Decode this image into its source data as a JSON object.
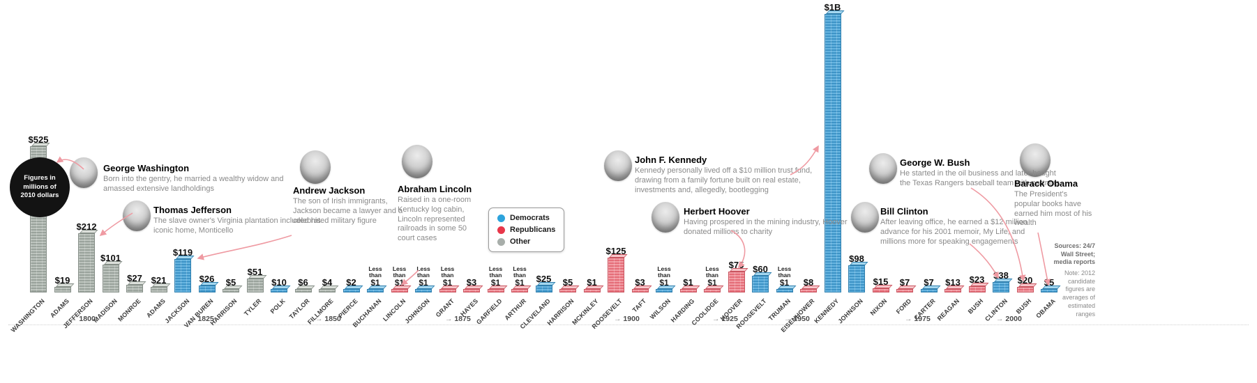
{
  "note_circle": "Figures in millions of 2010 dollars",
  "legend": {
    "items": [
      {
        "label": "Democrats",
        "color": "#2da3dc"
      },
      {
        "label": "Republicans",
        "color": "#e8374a"
      },
      {
        "label": "Other",
        "color": "#a8aeaa"
      }
    ]
  },
  "sources": {
    "line1": "Sources: 24/7 Wall Street; media reports",
    "line2": "Note: 2012 candidate figures are averages of estimated ranges"
  },
  "annotations": {
    "washington": {
      "title": "George Washington",
      "text": "Born into the gentry, he married a wealthy widow and amassed extensive landholdings"
    },
    "jefferson": {
      "title": "Thomas Jefferson",
      "text": "The slave owner's Virginia plantation included his iconic home, Monticello"
    },
    "jackson": {
      "title": "Andrew Jackson",
      "text": "The son of Irish immigrants, Jackson became a lawyer and a celebrated military figure"
    },
    "lincoln": {
      "title": "Abraham Lincoln",
      "text": "Raised in a one-room Kentucky log cabin, Lincoln represented railroads in some 50 court cases"
    },
    "kennedy": {
      "title": "John F. Kennedy",
      "text": "Kennedy personally lived off a $10 million trust fund, drawing from a family fortune built on real estate, investments and, allegedly, bootlegging"
    },
    "hoover": {
      "title": "Herbert Hoover",
      "text": "Having prospered in the mining industry, Hoover donated millions to charity"
    },
    "gwbush": {
      "title": "George W. Bush",
      "text": "He started in the oil business and later bought the Texas Rangers baseball team with partners"
    },
    "clinton": {
      "title": "Bill Clinton",
      "text": "After leaving office, he earned a $12 million advance for his 2001 memoir, My Life, and millions more for speaking engagements"
    },
    "obama": {
      "title": "Barack Obama",
      "text": "The President's popular books have earned him most of his wealth"
    }
  },
  "chart_data": {
    "type": "bar",
    "unit": "millions of 2010 dollars",
    "note": "Figures in millions of 2010 dollars; Kennedy shown as $1B",
    "timeline": [
      "1800",
      "1825",
      "1850",
      "1875",
      "1900",
      "1925",
      "1950",
      "1975",
      "2000"
    ],
    "parties": {
      "D": "Democrats",
      "R": "Republicans",
      "O": "Other"
    },
    "presidents": [
      {
        "name": "WASHINGTON",
        "value": 525,
        "label": "$525",
        "party": "O"
      },
      {
        "name": "ADAMS",
        "value": 19,
        "label": "$19",
        "party": "O"
      },
      {
        "name": "JEFFERSON",
        "value": 212,
        "label": "$212",
        "party": "O"
      },
      {
        "name": "MADISON",
        "value": 101,
        "label": "$101",
        "party": "O"
      },
      {
        "name": "MONROE",
        "value": 27,
        "label": "$27",
        "party": "O"
      },
      {
        "name": "ADAMS",
        "value": 21,
        "label": "$21",
        "party": "O"
      },
      {
        "name": "JACKSON",
        "value": 119,
        "label": "$119",
        "party": "D"
      },
      {
        "name": "VAN BUREN",
        "value": 26,
        "label": "$26",
        "party": "D"
      },
      {
        "name": "HARRISON",
        "value": 5,
        "label": "$5",
        "party": "O"
      },
      {
        "name": "TYLER",
        "value": 51,
        "label": "$51",
        "party": "O"
      },
      {
        "name": "POLK",
        "value": 10,
        "label": "$10",
        "party": "D"
      },
      {
        "name": "TAYLOR",
        "value": 6,
        "label": "$6",
        "party": "O"
      },
      {
        "name": "FILLMORE",
        "value": 4,
        "label": "$4",
        "party": "O"
      },
      {
        "name": "PIERCE",
        "value": 2,
        "label": "$2",
        "party": "D"
      },
      {
        "name": "BUCHANAN",
        "value": 0.5,
        "label": "Less than $1",
        "party": "D"
      },
      {
        "name": "LINCOLN",
        "value": 0.5,
        "label": "Less than $1",
        "party": "R"
      },
      {
        "name": "JOHNSON",
        "value": 0.5,
        "label": "Less than $1",
        "party": "D"
      },
      {
        "name": "GRANT",
        "value": 0.5,
        "label": "Less than $1",
        "party": "R"
      },
      {
        "name": "HAYES",
        "value": 3,
        "label": "$3",
        "party": "R"
      },
      {
        "name": "GARFIELD",
        "value": 0.5,
        "label": "Less than $1",
        "party": "R"
      },
      {
        "name": "ARTHUR",
        "value": 0.5,
        "label": "Less than $1",
        "party": "R"
      },
      {
        "name": "CLEVELAND",
        "value": 25,
        "label": "$25",
        "party": "D"
      },
      {
        "name": "HARRISON",
        "value": 5,
        "label": "$5",
        "party": "R"
      },
      {
        "name": "MCKINLEY",
        "value": 1,
        "label": "$1",
        "party": "R"
      },
      {
        "name": "ROOSEVELT",
        "value": 125,
        "label": "$125",
        "party": "R"
      },
      {
        "name": "TAFT",
        "value": 3,
        "label": "$3",
        "party": "R"
      },
      {
        "name": "WILSON",
        "value": 0.5,
        "label": "Less than $1",
        "party": "D"
      },
      {
        "name": "HARDING",
        "value": 1,
        "label": "$1",
        "party": "R"
      },
      {
        "name": "COOLIDGE",
        "value": 0.5,
        "label": "Less than $1",
        "party": "R"
      },
      {
        "name": "HOOVER",
        "value": 75,
        "label": "$75",
        "party": "R"
      },
      {
        "name": "ROOSEVELT",
        "value": 60,
        "label": "$60",
        "party": "D"
      },
      {
        "name": "TRUMAN",
        "value": 0.5,
        "label": "Less than $1",
        "party": "D"
      },
      {
        "name": "EISENHOWER",
        "value": 8,
        "label": "$8",
        "party": "R"
      },
      {
        "name": "KENNEDY",
        "value": 1000,
        "label": "$1B",
        "party": "D"
      },
      {
        "name": "JOHNSON",
        "value": 98,
        "label": "$98",
        "party": "D"
      },
      {
        "name": "NIXON",
        "value": 15,
        "label": "$15",
        "party": "R"
      },
      {
        "name": "FORD",
        "value": 7,
        "label": "$7",
        "party": "R"
      },
      {
        "name": "CARTER",
        "value": 7,
        "label": "$7",
        "party": "D"
      },
      {
        "name": "REAGAN",
        "value": 13,
        "label": "$13",
        "party": "R"
      },
      {
        "name": "BUSH",
        "value": 23,
        "label": "$23",
        "party": "R"
      },
      {
        "name": "CLINTON",
        "value": 38,
        "label": "$38",
        "party": "D"
      },
      {
        "name": "BUSH",
        "value": 20,
        "label": "$20",
        "party": "R"
      },
      {
        "name": "OBAMA",
        "value": 5,
        "label": "$5",
        "party": "D"
      }
    ]
  }
}
